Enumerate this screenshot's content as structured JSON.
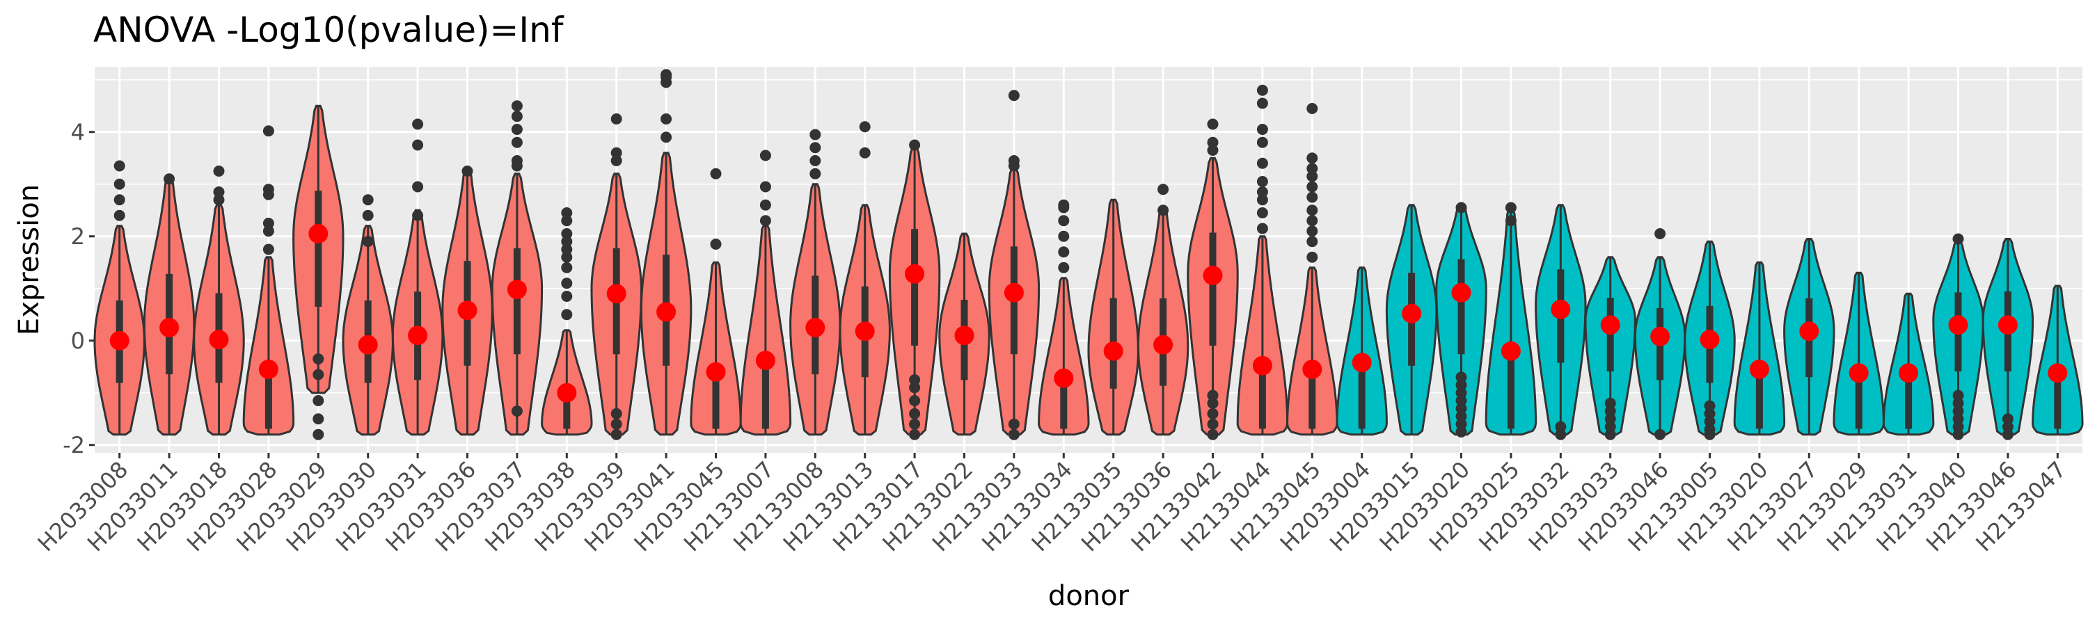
{
  "chart_data": {
    "type": "violin",
    "title": "ANOVA -Log10(pvalue)=Inf",
    "xlabel": "donor",
    "ylabel": "Expression",
    "ylim": [
      -2.15,
      5.25
    ],
    "y_ticks": [
      -2,
      0,
      2,
      4
    ],
    "grid": true,
    "legend": "none",
    "colors": {
      "group_a": "#F8766D",
      "group_b": "#00BFC4",
      "mean_point": "#FF0000",
      "panel_bg": "#EBEBEB",
      "grid": "#FFFFFF",
      "outline": "#333333"
    },
    "categories": [
      "H2033008",
      "H2033011",
      "H2033018",
      "H2033028",
      "H2033029",
      "H2033030",
      "H2033031",
      "H2033036",
      "H2033037",
      "H2033038",
      "H2033039",
      "H2033041",
      "H2033045",
      "H2133007",
      "H2133008",
      "H2133013",
      "H2133017",
      "H2133022",
      "H2133033",
      "H2133034",
      "H2133035",
      "H2133036",
      "H2133042",
      "H2133044",
      "H2133045",
      "H2033004",
      "H2033015",
      "H2033020",
      "H2033025",
      "H2033032",
      "H2033033",
      "H2033046",
      "H2133005",
      "H2133020",
      "H2133027",
      "H2133029",
      "H2133031",
      "H2133040",
      "H2133046",
      "H2133047"
    ],
    "group": [
      "a",
      "a",
      "a",
      "a",
      "a",
      "a",
      "a",
      "a",
      "a",
      "a",
      "a",
      "a",
      "a",
      "a",
      "a",
      "a",
      "a",
      "a",
      "a",
      "a",
      "a",
      "a",
      "a",
      "a",
      "a",
      "b",
      "b",
      "b",
      "b",
      "b",
      "b",
      "b",
      "b",
      "b",
      "b",
      "b",
      "b",
      "b",
      "b",
      "b"
    ],
    "mean": [
      0.0,
      0.25,
      0.02,
      -0.55,
      2.05,
      -0.08,
      0.1,
      0.58,
      0.98,
      -1.0,
      0.9,
      0.55,
      -0.6,
      -0.38,
      0.25,
      0.18,
      1.28,
      0.1,
      0.92,
      -0.72,
      -0.2,
      -0.08,
      1.25,
      -0.48,
      -0.55,
      -0.42,
      0.52,
      0.92,
      -0.2,
      0.6,
      0.3,
      0.08,
      0.02,
      -0.55,
      0.18,
      -0.62,
      -0.62,
      0.3,
      0.3,
      -0.62
    ],
    "min": [
      -1.8,
      -1.8,
      -1.8,
      -1.8,
      -1.0,
      -1.8,
      -1.8,
      -1.8,
      -1.8,
      -1.8,
      -1.8,
      -1.8,
      -1.8,
      -1.8,
      -1.8,
      -1.8,
      -1.8,
      -1.8,
      -1.8,
      -1.8,
      -1.8,
      -1.8,
      -1.8,
      -1.8,
      -1.8,
      -1.8,
      -1.8,
      -1.8,
      -1.8,
      -1.8,
      -1.8,
      -1.8,
      -1.8,
      -1.8,
      -1.8,
      -1.8,
      -1.8,
      -1.8,
      -1.8,
      -1.8
    ],
    "max": [
      2.2,
      3.1,
      2.6,
      1.6,
      4.5,
      2.2,
      2.5,
      3.25,
      3.2,
      0.2,
      3.2,
      3.6,
      1.5,
      2.2,
      3.0,
      2.6,
      3.7,
      2.05,
      3.3,
      1.2,
      2.7,
      2.5,
      3.5,
      2.0,
      1.4,
      1.4,
      2.6,
      2.6,
      2.5,
      2.6,
      1.6,
      1.6,
      1.9,
      1.5,
      1.95,
      1.3,
      0.9,
      1.9,
      1.95,
      1.05
    ],
    "peak": [
      0.0,
      0.3,
      0.0,
      -1.6,
      2.0,
      0.0,
      0.1,
      0.6,
      1.0,
      -1.6,
      1.0,
      0.6,
      -1.6,
      -1.6,
      0.3,
      0.2,
      1.3,
      0.1,
      1.0,
      -1.6,
      -0.2,
      -0.1,
      1.3,
      -1.6,
      -1.6,
      -1.6,
      0.6,
      1.0,
      -1.6,
      0.7,
      0.4,
      0.1,
      0.0,
      -1.6,
      0.2,
      -1.6,
      -1.6,
      0.4,
      0.4,
      -1.6
    ],
    "outliers": [
      [
        2.4,
        2.7,
        3.0,
        3.35
      ],
      [
        3.1
      ],
      [
        2.7,
        2.85,
        3.25
      ],
      [
        1.75,
        2.1,
        2.25,
        2.8,
        2.9,
        4.02
      ],
      [
        -1.8,
        -1.5,
        -1.15,
        -0.65,
        -0.35
      ],
      [
        1.9,
        2.4,
        2.7
      ],
      [
        2.4,
        2.95,
        3.75,
        4.15
      ],
      [
        3.25
      ],
      [
        -1.35,
        3.35,
        3.45,
        3.8,
        4.05,
        4.3,
        4.5
      ],
      [
        0.5,
        0.85,
        1.1,
        1.4,
        1.6,
        1.75,
        1.9,
        2.05,
        2.3,
        2.45
      ],
      [
        -1.8,
        -1.6,
        -1.4,
        3.45,
        3.6,
        4.25
      ],
      [
        3.9,
        4.25,
        4.95,
        5.05,
        5.1
      ],
      [
        1.85,
        3.2
      ],
      [
        2.3,
        2.6,
        2.95,
        3.55
      ],
      [
        3.2,
        3.45,
        3.7,
        3.95
      ],
      [
        3.6,
        4.1
      ],
      [
        -1.8,
        -1.6,
        -1.4,
        -1.15,
        -0.9,
        -0.75,
        3.75
      ],
      [],
      [
        -1.8,
        -1.6,
        3.35,
        3.45,
        4.7
      ],
      [
        1.4,
        1.7,
        2.0,
        2.3,
        2.55,
        2.6
      ],
      [],
      [
        2.5,
        2.9
      ],
      [
        -1.8,
        -1.6,
        -1.4,
        -1.2,
        -1.05,
        3.65,
        3.8,
        4.15
      ],
      [
        2.15,
        2.45,
        2.7,
        2.85,
        3.05,
        3.4,
        3.8,
        4.05,
        4.55,
        4.8
      ],
      [
        1.6,
        1.9,
        2.1,
        2.3,
        2.5,
        2.75,
        2.95,
        3.15,
        3.3,
        3.5,
        4.45
      ],
      [],
      [],
      [
        -1.75,
        -1.6,
        -1.45,
        -1.3,
        -1.15,
        -1.0,
        -0.85,
        -0.7,
        2.55
      ],
      [
        2.3,
        2.55
      ],
      [
        -1.8,
        -1.65
      ],
      [
        -1.8,
        -1.65,
        -1.5,
        -1.35,
        -1.2
      ],
      [
        -1.8,
        2.05
      ],
      [
        -1.8,
        -1.7,
        -1.55,
        -1.4,
        -1.25
      ],
      [],
      [],
      [],
      [],
      [
        -1.8,
        -1.65,
        -1.5,
        -1.35,
        -1.2,
        -1.05,
        1.95
      ],
      [
        -1.8,
        -1.65,
        -1.5
      ],
      []
    ]
  }
}
